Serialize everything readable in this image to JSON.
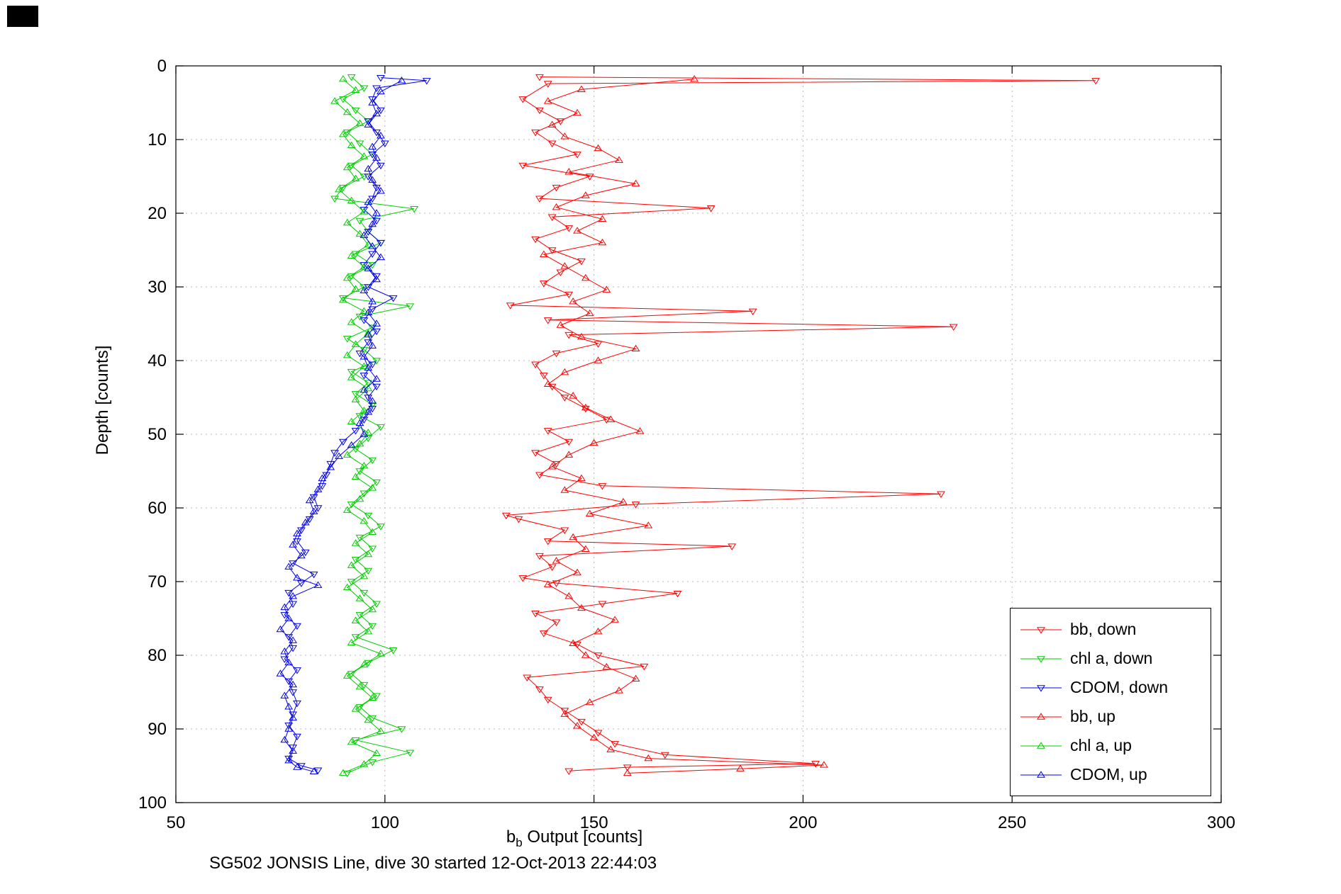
{
  "figure": {
    "ylabel": "Depth [counts]",
    "xlabel_prefix": "b",
    "xlabel_sub": "b",
    "xlabel_rest": " Output [counts]",
    "caption": "SG502 JONSIS Line, dive 30 started 12-Oct-2013 22:44:03"
  },
  "chart_data": {
    "type": "line",
    "title": "SG502 JONSIS Line, dive 30 started 12-Oct-2013 22:44:03",
    "xlabel": "b_b Output [counts]",
    "ylabel": "Depth [counts]",
    "xlim": [
      50,
      300
    ],
    "ylim": [
      0,
      100
    ],
    "y_inverted": true,
    "x_ticks": [
      50,
      100,
      150,
      200,
      250,
      300
    ],
    "y_ticks": [
      0,
      10,
      20,
      30,
      40,
      50,
      60,
      70,
      80,
      90,
      100
    ],
    "grid": "dotted",
    "grid_color": "#b8b8b8",
    "axis_color": "#000000",
    "legend_position": "bottom-right-inside",
    "series": [
      {
        "name": "bb, down",
        "color": "#ff0000",
        "marker": "triangle-down",
        "depth": [
          1.5,
          2.0,
          2.4,
          4.5,
          6,
          7.5,
          9,
          10.5,
          12,
          13.5,
          15,
          16.5,
          18,
          19.3,
          20.5,
          22,
          23.5,
          25,
          26.5,
          28,
          29.5,
          31,
          32.5,
          33.3,
          34.5,
          35.4,
          36.5,
          37.7,
          39,
          40.5,
          42,
          43.5,
          45,
          46.5,
          48,
          49.5,
          51,
          52.5,
          54,
          55.5,
          57,
          58.1,
          59.5,
          61,
          61.5,
          63,
          64.5,
          65.2,
          66.5,
          68,
          69.5,
          70.2,
          71.6,
          73,
          74.3,
          75.5,
          77,
          78.5,
          80,
          81.5,
          83,
          84.6,
          86,
          87.5,
          89,
          90.5,
          92,
          93.5,
          94.7,
          95.2,
          95.7
        ],
        "x": [
          137,
          270,
          139,
          133,
          137,
          142,
          136,
          140,
          146,
          133,
          149,
          141,
          137,
          178,
          140,
          144,
          136,
          140,
          147,
          142,
          138,
          144,
          130,
          188,
          139,
          236,
          144,
          151,
          141,
          136,
          138,
          140,
          143,
          148,
          153,
          139,
          144,
          136,
          141,
          137,
          152,
          233,
          160,
          129,
          132,
          143,
          139,
          183,
          137,
          140,
          133,
          141,
          170,
          152,
          136,
          141,
          138,
          146,
          151,
          162,
          134,
          137,
          139,
          143,
          147,
          151,
          155,
          167,
          203,
          158,
          144
        ]
      },
      {
        "name": "chl a, down",
        "color": "#00cc00",
        "marker": "triangle-down",
        "depth": [
          1.5,
          3,
          4.5,
          6,
          7.5,
          9,
          10.5,
          12,
          13.5,
          15,
          16.5,
          18,
          19.4,
          21,
          22.5,
          24,
          25.5,
          27,
          28.5,
          30,
          31.5,
          32.6,
          34,
          35.5,
          37,
          38.5,
          40,
          41.5,
          43,
          44.5,
          46,
          47.5,
          49,
          50.5,
          52,
          53.5,
          55,
          56.5,
          58,
          59.5,
          61,
          62.5,
          64,
          65.5,
          67,
          68.5,
          70,
          71.5,
          73,
          74.5,
          76,
          77.5,
          79.3,
          81,
          82.5,
          84,
          85.5,
          87,
          88.5,
          90,
          91.5,
          93.2,
          94.5,
          96
        ],
        "x": [
          92,
          95,
          90,
          93,
          96,
          91,
          94,
          97,
          92,
          95,
          90,
          88,
          107,
          94,
          96,
          99,
          93,
          97,
          92,
          95,
          90,
          106,
          94,
          97,
          91,
          95,
          98,
          92,
          96,
          93,
          97,
          94,
          99,
          96,
          93,
          97,
          94,
          98,
          95,
          92,
          96,
          99,
          94,
          97,
          93,
          96,
          92,
          95,
          98,
          94,
          97,
          93,
          102,
          96,
          92,
          95,
          98,
          94,
          97,
          104,
          93,
          106,
          97,
          91
        ]
      },
      {
        "name": "CDOM, down",
        "color": "#0000ee",
        "marker": "triangle-down",
        "depth": [
          1.6,
          2.0,
          3,
          4.5,
          6,
          7.5,
          9,
          10.5,
          12,
          13.5,
          15,
          16.5,
          18,
          19.5,
          21,
          22.5,
          24,
          25.5,
          27,
          28.5,
          30,
          31.5,
          33,
          34.5,
          36,
          37.5,
          39,
          40.5,
          42,
          43.5,
          45,
          46.5,
          48,
          49.5,
          51,
          52.5,
          54,
          55.5,
          57,
          58.5,
          60,
          61.5,
          63,
          64.5,
          66,
          67.5,
          69,
          70.2,
          71.5,
          73,
          74.5,
          76,
          77.5,
          79,
          80.5,
          82,
          83.5,
          85,
          86.5,
          88,
          89.5,
          91,
          92.5,
          94,
          95,
          95.6
        ],
        "x": [
          99,
          110,
          98,
          97,
          99,
          96,
          98,
          100,
          97,
          99,
          96,
          98,
          97,
          95,
          98,
          96,
          99,
          97,
          95,
          98,
          96,
          102,
          97,
          95,
          98,
          96,
          94,
          97,
          95,
          98,
          96,
          97,
          95,
          93,
          90,
          88,
          87,
          86,
          85,
          83,
          84,
          82,
          80,
          79,
          81,
          78,
          83,
          80,
          77,
          78,
          76,
          79,
          77,
          78,
          76,
          79,
          77,
          78,
          79,
          78,
          77,
          79,
          78,
          77,
          80,
          84
        ]
      },
      {
        "name": "bb, up",
        "color": "#ff0000",
        "marker": "triangle-up",
        "depth": [
          1.8,
          3.2,
          4.8,
          6.4,
          8,
          9.6,
          11.2,
          12.8,
          14.4,
          16,
          17.6,
          19.2,
          20.8,
          22.4,
          24,
          25.6,
          27.2,
          28.8,
          30.4,
          32,
          33.6,
          35.2,
          36.8,
          38.4,
          40,
          41.6,
          43.2,
          44.8,
          46.4,
          48,
          49.6,
          51.2,
          52.8,
          54.4,
          56,
          57.6,
          59.2,
          60.8,
          62.4,
          64,
          65.6,
          67.2,
          68.8,
          70.4,
          72,
          73.6,
          75.2,
          76.8,
          78.4,
          80,
          81.6,
          83.2,
          84.8,
          86.4,
          88,
          89.6,
          91.2,
          92.8,
          94,
          94.9,
          95.4,
          96
        ],
        "x": [
          174,
          147,
          139,
          146,
          140,
          143,
          151,
          156,
          144,
          160,
          148,
          141,
          152,
          146,
          152,
          138,
          143,
          148,
          153,
          145,
          149,
          142,
          147,
          160,
          151,
          143,
          139,
          145,
          148,
          154,
          161,
          150,
          144,
          140,
          147,
          143,
          157,
          149,
          163,
          145,
          148,
          141,
          146,
          139,
          144,
          147,
          155,
          151,
          145,
          148,
          153,
          160,
          156,
          149,
          143,
          146,
          150,
          154,
          163,
          205,
          185,
          158
        ]
      },
      {
        "name": "chl a, up",
        "color": "#00cc00",
        "marker": "triangle-up",
        "depth": [
          1.8,
          3.3,
          4.8,
          6.3,
          7.8,
          9.3,
          10.8,
          12.3,
          13.8,
          15.3,
          16.8,
          18.3,
          19.8,
          21.3,
          22.8,
          24.3,
          25.8,
          27.3,
          28.8,
          30.3,
          31.8,
          33.3,
          34.8,
          36.3,
          37.8,
          39.3,
          40.8,
          42.3,
          43.8,
          45.3,
          46.8,
          48.3,
          49.8,
          51.3,
          52.8,
          54.3,
          55.8,
          57.3,
          58.8,
          60.3,
          61.8,
          63.3,
          64.8,
          66.3,
          67.8,
          69.3,
          70.8,
          72.3,
          73.8,
          75.3,
          76.8,
          78.3,
          79.8,
          81.3,
          82.8,
          84.3,
          85.8,
          87.3,
          88.8,
          90.3,
          91.8,
          93.3,
          94.8,
          96
        ],
        "x": [
          90,
          93,
          88,
          91,
          94,
          90,
          92,
          95,
          91,
          93,
          89,
          92,
          95,
          91,
          94,
          96,
          92,
          95,
          91,
          93,
          90,
          95,
          92,
          96,
          93,
          91,
          95,
          92,
          96,
          93,
          95,
          92,
          96,
          94,
          91,
          95,
          93,
          97,
          94,
          91,
          95,
          97,
          93,
          96,
          92,
          95,
          91,
          94,
          97,
          93,
          96,
          92,
          99,
          95,
          91,
          94,
          97,
          93,
          96,
          99,
          92,
          98,
          95,
          90
        ]
      },
      {
        "name": "CDOM, up",
        "color": "#0000ee",
        "marker": "triangle-up",
        "depth": [
          2,
          3.5,
          5,
          6.5,
          8,
          9.5,
          11,
          12.5,
          14,
          15.5,
          17,
          18.5,
          20,
          21.5,
          23,
          24.5,
          26,
          27.5,
          29,
          30.5,
          32,
          33.5,
          35,
          36.5,
          38,
          39.5,
          41,
          42.5,
          44,
          45.5,
          47,
          48.5,
          50,
          51.5,
          53,
          54.5,
          56,
          57.5,
          59,
          60.5,
          62,
          63.5,
          65,
          66.5,
          68,
          69.5,
          70.5,
          72,
          73.5,
          75,
          76.5,
          78,
          79.5,
          81,
          82.5,
          84,
          85.5,
          87,
          88.5,
          90,
          91.5,
          93,
          94.3,
          95.2,
          95.8
        ],
        "x": [
          104,
          99,
          97,
          98,
          96,
          99,
          97,
          98,
          96,
          97,
          99,
          96,
          98,
          97,
          95,
          97,
          99,
          96,
          98,
          95,
          97,
          96,
          98,
          96,
          97,
          95,
          96,
          98,
          95,
          97,
          96,
          94,
          95,
          92,
          89,
          87,
          85,
          84,
          82,
          83,
          81,
          79,
          78,
          80,
          77,
          79,
          84,
          78,
          76,
          77,
          75,
          78,
          76,
          77,
          75,
          78,
          76,
          77,
          78,
          77,
          76,
          78,
          77,
          79,
          83
        ]
      }
    ]
  }
}
